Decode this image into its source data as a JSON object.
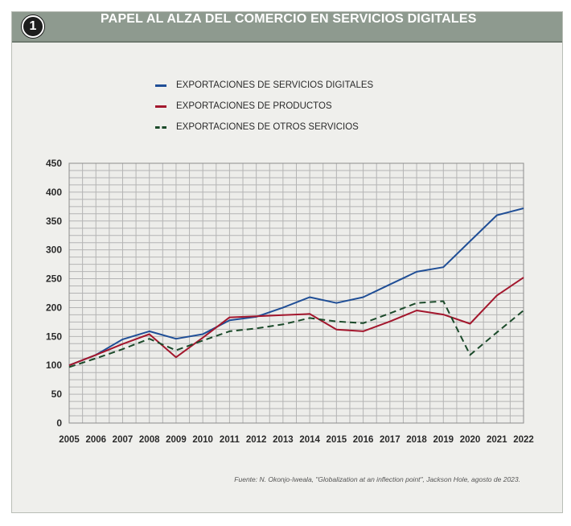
{
  "header": {
    "badge": "1",
    "title": "PAPEL AL ALZA DEL COMERCIO EN SERVICIOS DIGITALES"
  },
  "source": "Fuente: N. Okonjo-Iweala, \"Globalization at an inflection point\", Jackson Hole, agosto de 2023.",
  "colors": {
    "digital": "#1f4e96",
    "productos": "#a3172d",
    "otros": "#1b4a2a",
    "header_bg": "#8e9a8f"
  },
  "chart_data": {
    "type": "line",
    "title": "",
    "xlabel": "",
    "ylabel": "",
    "x": [
      "2005",
      "2006",
      "2007",
      "2008",
      "2009",
      "2010",
      "2011",
      "2012",
      "2013",
      "2014",
      "2015",
      "2016",
      "2017",
      "2018",
      "2019",
      "2020",
      "2021",
      "2022"
    ],
    "ylim": [
      0,
      450
    ],
    "yticks": [
      0,
      50,
      100,
      150,
      200,
      250,
      300,
      350,
      400,
      450
    ],
    "grid": true,
    "legend_placement": "top-left",
    "series": [
      {
        "name": "EXPORTACIONES DE SERVICIOS DIGITALES",
        "style": "solid",
        "color": "#1f4e96",
        "values": [
          100,
          118,
          145,
          159,
          146,
          154,
          178,
          184,
          200,
          218,
          208,
          218,
          240,
          262,
          270,
          315,
          360,
          372
        ]
      },
      {
        "name": "EXPORTACIONES DE PRODUCTOS",
        "style": "solid",
        "color": "#a3172d",
        "values": [
          100,
          118,
          137,
          154,
          114,
          148,
          183,
          185,
          187,
          189,
          162,
          159,
          176,
          195,
          188,
          172,
          221,
          252
        ]
      },
      {
        "name": "EXPORTACIONES DE OTROS SERVICIOS",
        "style": "dashed",
        "color": "#1b4a2a",
        "values": [
          97,
          112,
          128,
          146,
          126,
          143,
          159,
          164,
          171,
          182,
          176,
          173,
          190,
          208,
          211,
          118,
          157,
          195
        ]
      }
    ]
  }
}
